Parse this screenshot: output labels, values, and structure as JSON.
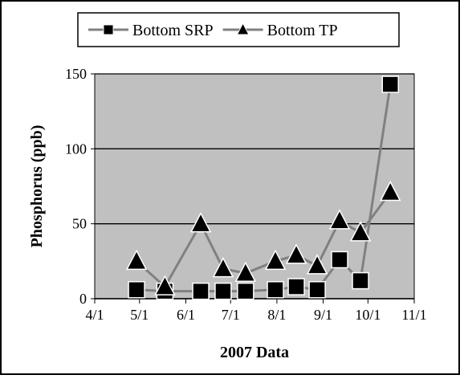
{
  "chart_data": {
    "type": "line",
    "xlabel": "2007 Data",
    "ylabel": "Phosphorus  (ppb)",
    "x": [
      "4/29",
      "5/18",
      "6/11",
      "6/26",
      "7/11",
      "7/31",
      "8/14",
      "8/28",
      "9/12",
      "9/26",
      "10/16"
    ],
    "series": [
      {
        "name": "Bottom SRP",
        "color": "#808080",
        "marker": "square",
        "values": [
          6,
          5,
          5,
          5,
          5,
          6,
          8,
          6,
          26,
          12,
          143
        ]
      },
      {
        "name": "Bottom TP",
        "color": "#808080",
        "marker": "triangle",
        "values": [
          25,
          8,
          50,
          20,
          17,
          25,
          29,
          22,
          52,
          44,
          71
        ]
      }
    ],
    "xlim": [
      "4/1",
      "11/1"
    ],
    "xticks": [
      "4/1",
      "5/1",
      "6/1",
      "7/1",
      "8/1",
      "9/1",
      "10/1",
      "11/1"
    ],
    "ylim": [
      0,
      150
    ],
    "yticks": [
      0,
      50,
      100,
      150
    ],
    "grid": true,
    "legend": "top",
    "plot_background": "#c0c0c0"
  }
}
